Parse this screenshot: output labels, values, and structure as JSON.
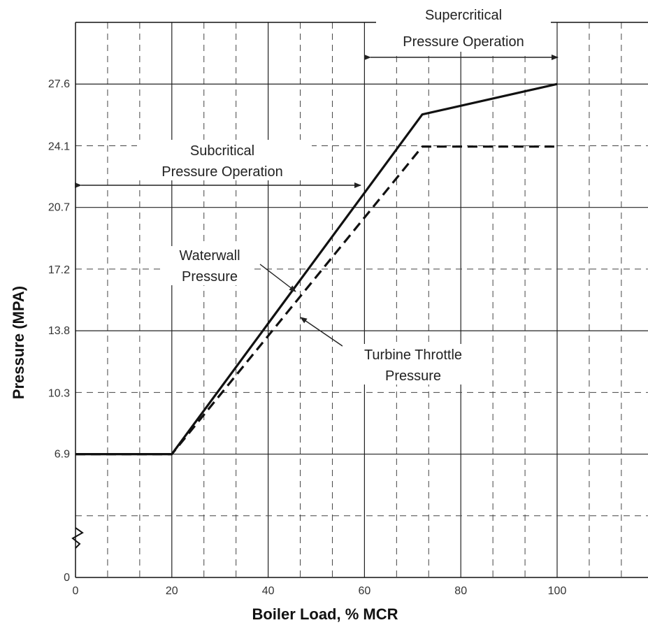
{
  "chart_data": {
    "type": "line",
    "xlabel": "Boiler Load, % MCR",
    "ylabel": "Pressure (MPA)",
    "xlim": [
      0,
      120
    ],
    "ylim": [
      0,
      31.05
    ],
    "x_ticks": [
      "0",
      "20",
      "40",
      "60",
      "80",
      "100"
    ],
    "y_ticks": [
      "0",
      "6.9",
      "10.3",
      "13.8",
      "17.2",
      "20.7",
      "24.1",
      "27.6"
    ],
    "y_axis_break": true,
    "grid": true,
    "series": [
      {
        "name": "Waterwall Pressure",
        "style": "solid",
        "x": [
          0,
          20,
          72,
          100
        ],
        "y": [
          6.9,
          6.9,
          25.9,
          27.6
        ]
      },
      {
        "name": "Turbine Throttle Pressure",
        "style": "dashed",
        "x": [
          0,
          20,
          72,
          100
        ],
        "y": [
          6.9,
          6.9,
          24.1,
          24.1
        ]
      }
    ],
    "annotations": [
      {
        "id": "subcritical",
        "lines": [
          "Subcritical",
          "Pressure Operation"
        ],
        "x_range": [
          0,
          60
        ]
      },
      {
        "id": "supercritical",
        "lines": [
          "Supercritical",
          "Pressure Operation"
        ],
        "x_range": [
          60,
          100
        ]
      },
      {
        "id": "waterwall",
        "lines": [
          "Waterwall",
          "Pressure"
        ]
      },
      {
        "id": "throttle",
        "lines": [
          "Turbine Throttle",
          "Pressure"
        ]
      }
    ]
  }
}
